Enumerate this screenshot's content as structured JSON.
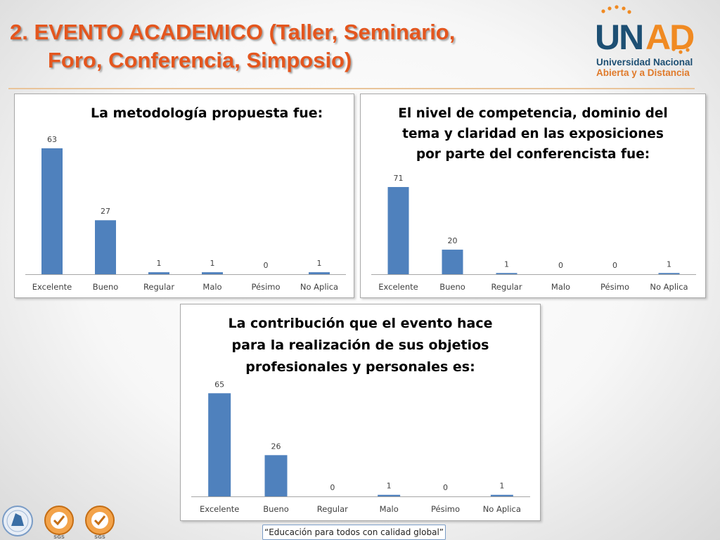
{
  "header": {
    "title_line1": "2. EVENTO ACADEMICO (Taller, Seminario,",
    "title_line2": "Foro, Conferencia, Simposio)"
  },
  "logo": {
    "wordmark": "UNAD",
    "line1": "Universidad Nacional",
    "line2": "Abierta y a Distancia",
    "colors": {
      "blue": "#1d4f73",
      "orange": "#f08a22"
    }
  },
  "footer": {
    "tagline": "“Educación para todos con calidad global”"
  },
  "certifications": [
    "SGS",
    "SGS"
  ],
  "colors": {
    "bar": "#4f81bd",
    "title": "#e4561e"
  },
  "chart_data": [
    {
      "type": "bar",
      "title": "La metodología propuesta fue:",
      "categories": [
        "Excelente",
        "Bueno",
        "Regular",
        "Malo",
        "Pésimo",
        "No Aplica"
      ],
      "values": [
        63,
        27,
        1,
        1,
        0,
        1
      ],
      "ylim": [
        0,
        70
      ],
      "grid": false,
      "legend": "none"
    },
    {
      "type": "bar",
      "title": "El nivel de competencia, dominio del tema y claridad en las exposiciones por parte del conferencista fue:",
      "title_lines": [
        "El nivel de competencia, dominio del",
        "tema y claridad en las exposiciones",
        "por parte del conferencista fue:"
      ],
      "categories": [
        "Excelente",
        "Bueno",
        "Regular",
        "Malo",
        "Pésimo",
        "No Aplica"
      ],
      "values": [
        71,
        20,
        1,
        0,
        0,
        1
      ],
      "ylim": [
        0,
        75
      ],
      "grid": false,
      "legend": "none"
    },
    {
      "type": "bar",
      "title": "La contribución que el evento hace para la realización de sus objetios profesionales y personales es:",
      "title_lines": [
        "La contribución que el evento hace",
        "para la realización de sus objetios",
        "profesionales y personales es:"
      ],
      "categories": [
        "Excelente",
        "Bueno",
        "Regular",
        "Malo",
        "Pésimo",
        "No Aplica"
      ],
      "values": [
        65,
        26,
        0,
        1,
        0,
        1
      ],
      "ylim": [
        0,
        70
      ],
      "grid": false,
      "legend": "none"
    }
  ]
}
